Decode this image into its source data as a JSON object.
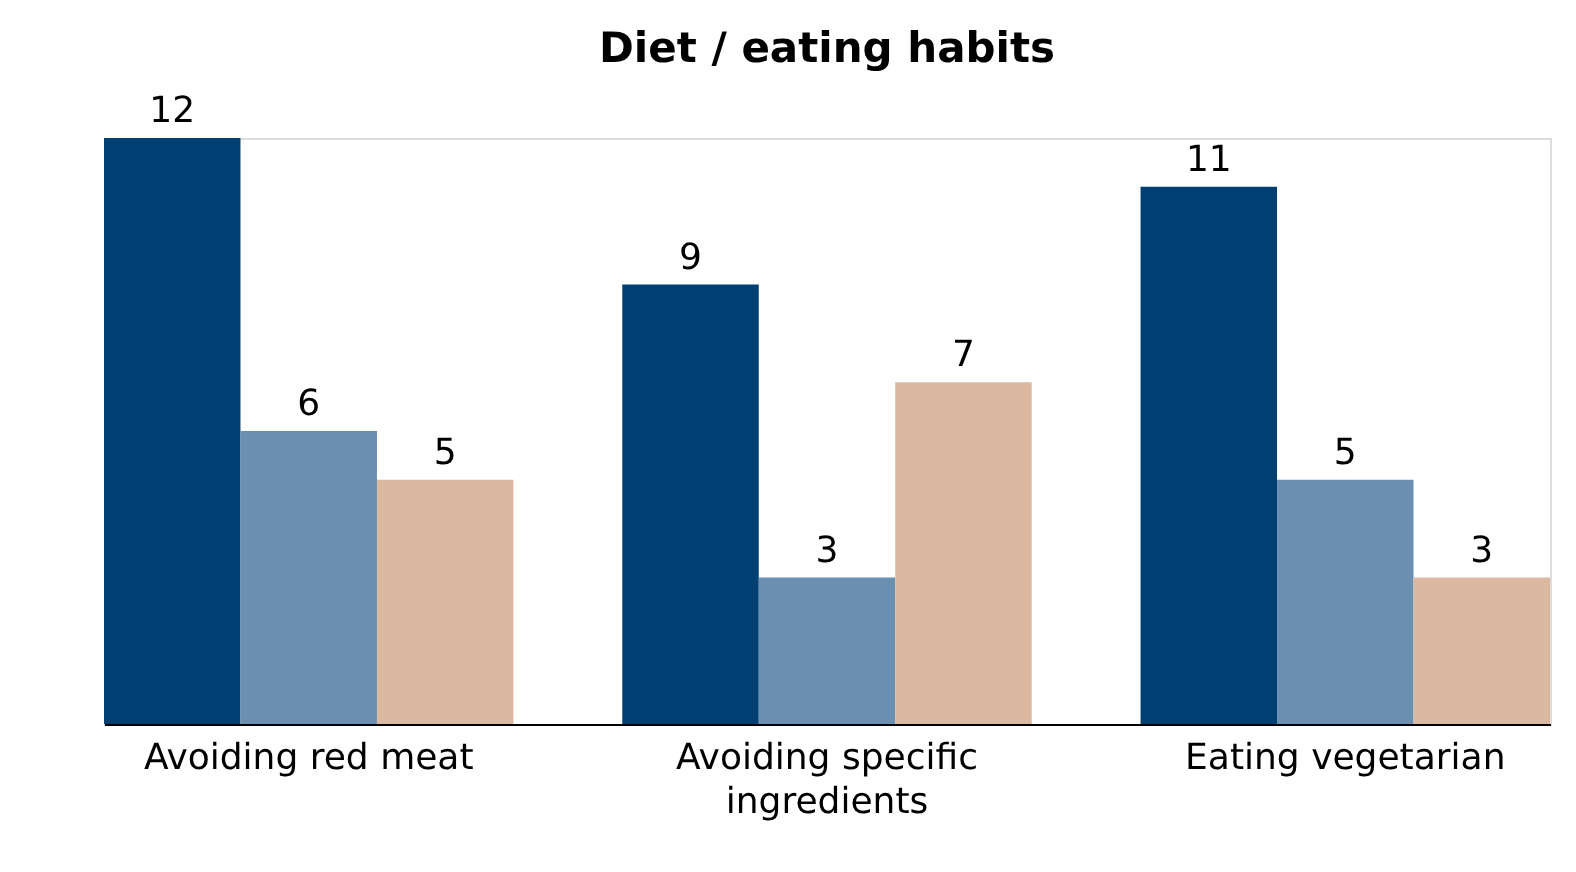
{
  "chart_data": {
    "type": "bar",
    "title": "Diet / eating habits",
    "categories": [
      "Avoiding red meat",
      "Avoiding specific ingredients",
      "Eating vegetarian"
    ],
    "series": [
      {
        "color": "#003f72",
        "values": [
          12,
          9,
          11
        ]
      },
      {
        "color": "#6a8fb0",
        "values": [
          6,
          3,
          5
        ]
      },
      {
        "color": "#dbb9a0",
        "values": [
          5,
          7,
          3
        ]
      }
    ],
    "data_labels": true
  }
}
